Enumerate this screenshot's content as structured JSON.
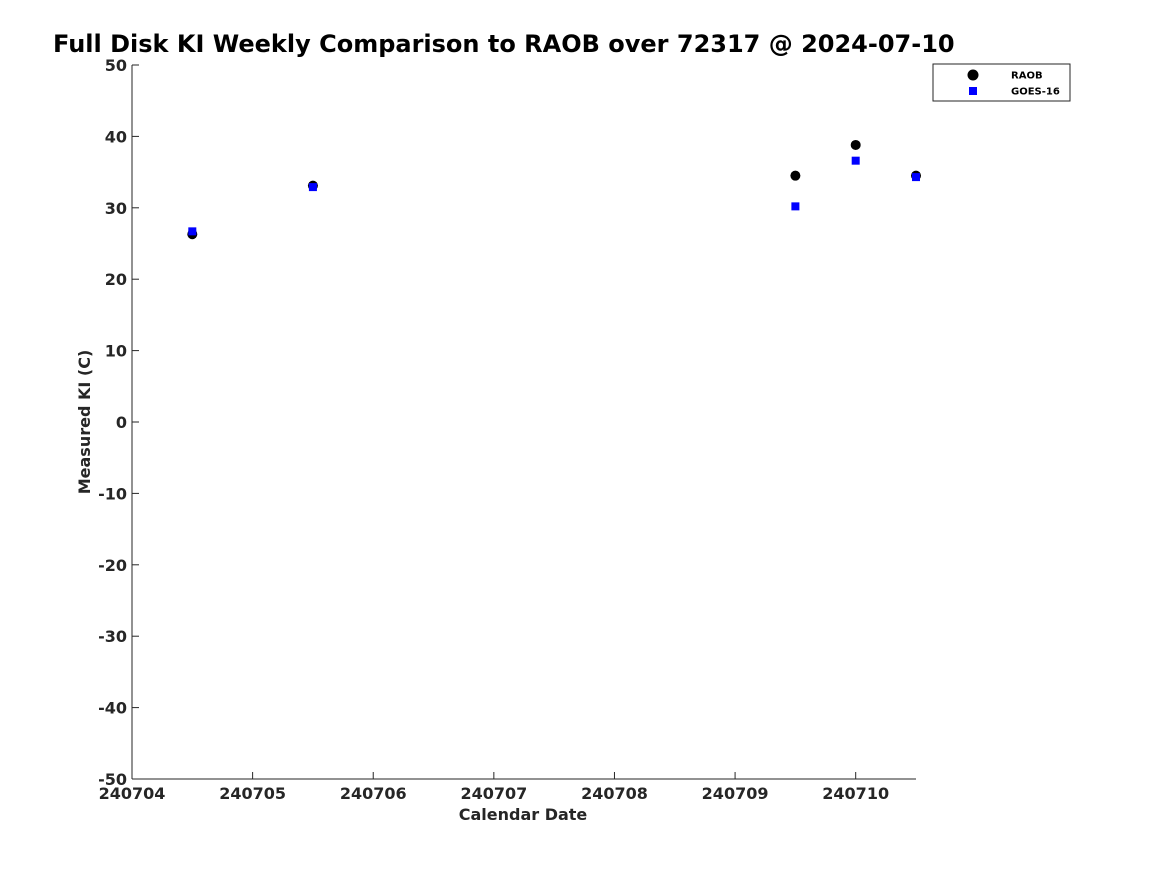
{
  "chart_data": {
    "type": "scatter",
    "title": "Full Disk KI Weekly Comparison to RAOB over 72317 @ 2024-07-10",
    "xlabel": "Calendar Date",
    "ylabel": "Measured KI (C)",
    "x_tick_labels": [
      "240704",
      "240705",
      "240706",
      "240707",
      "240708",
      "240709",
      "240710"
    ],
    "y_ticks": [
      50,
      40,
      30,
      20,
      10,
      0,
      -10,
      -20,
      -30,
      -40,
      -50
    ],
    "y_tick_labels": [
      "50",
      "40",
      "30",
      "20",
      "10",
      "0",
      "-10",
      "-20",
      "-30",
      "-40",
      "-50"
    ],
    "xlim": [
      "2024-07-04T00:00",
      "2024-07-10T12:00"
    ],
    "ylim": [
      -50,
      50
    ],
    "grid": false,
    "legend_position": "top-right",
    "series": [
      {
        "name": "RAOB",
        "marker": "circle",
        "color": "#000000",
        "points": [
          {
            "x": "2024-07-04T12:00",
            "y": 26.3
          },
          {
            "x": "2024-07-05T12:00",
            "y": 33.1
          },
          {
            "x": "2024-07-09T12:00",
            "y": 34.5
          },
          {
            "x": "2024-07-10T00:00",
            "y": 38.8
          },
          {
            "x": "2024-07-10T12:00",
            "y": 34.5
          }
        ]
      },
      {
        "name": "GOES-16",
        "marker": "square",
        "color": "#0000ff",
        "points": [
          {
            "x": "2024-07-04T12:00",
            "y": 26.7
          },
          {
            "x": "2024-07-05T12:00",
            "y": 32.9
          },
          {
            "x": "2024-07-09T12:00",
            "y": 30.2
          },
          {
            "x": "2024-07-10T00:00",
            "y": 36.6
          },
          {
            "x": "2024-07-10T12:00",
            "y": 34.3
          }
        ]
      }
    ]
  }
}
